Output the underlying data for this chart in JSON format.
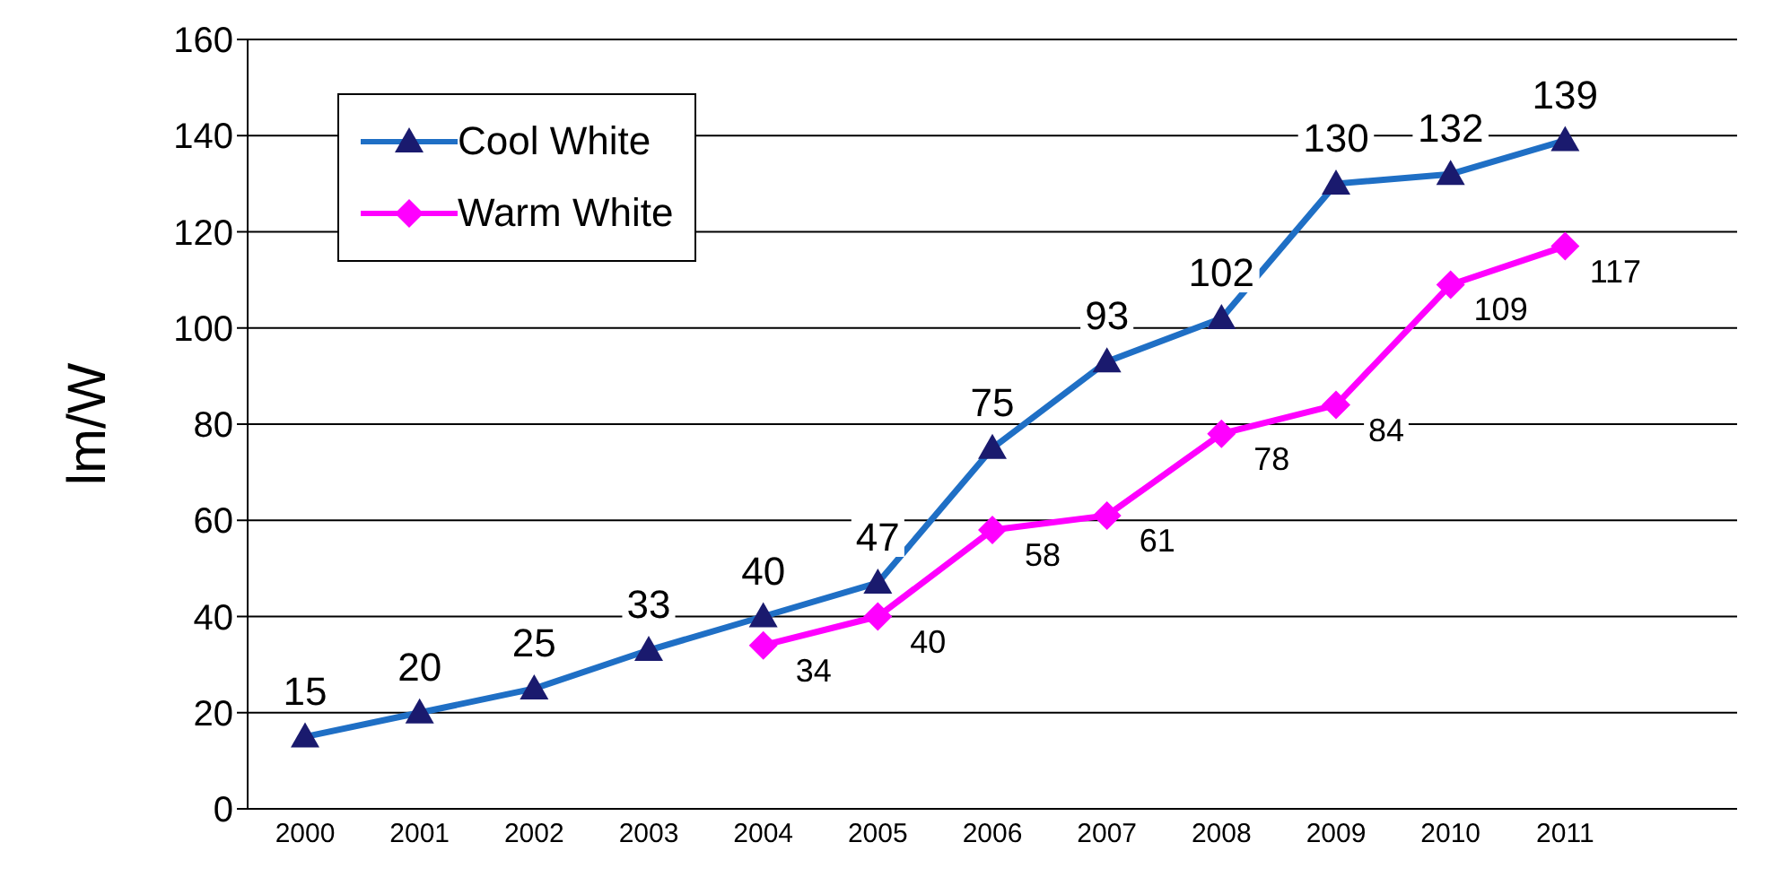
{
  "chart_data": {
    "type": "line",
    "ylabel": "lm/W",
    "categories": [
      "2000",
      "2001",
      "2002",
      "2003",
      "2004",
      "2005",
      "2006",
      "2007",
      "2008",
      "2009",
      "2010",
      "2011",
      null
    ],
    "series": [
      {
        "name": "Cool White",
        "color": "#1f6fc5",
        "marker": "triangle",
        "values": [
          15,
          20,
          25,
          33,
          40,
          47,
          75,
          93,
          102,
          130,
          132,
          139,
          null
        ]
      },
      {
        "name": "Warm White",
        "color": "#ff00ff",
        "marker": "diamond",
        "values": [
          null,
          null,
          null,
          null,
          34,
          40,
          58,
          61,
          78,
          84,
          109,
          117,
          null
        ]
      }
    ],
    "ylim": [
      0,
      160
    ],
    "yticks": [
      0,
      20,
      40,
      60,
      80,
      100,
      120,
      140,
      160
    ],
    "grid": "y",
    "legend": "top left",
    "data_labels": true
  }
}
